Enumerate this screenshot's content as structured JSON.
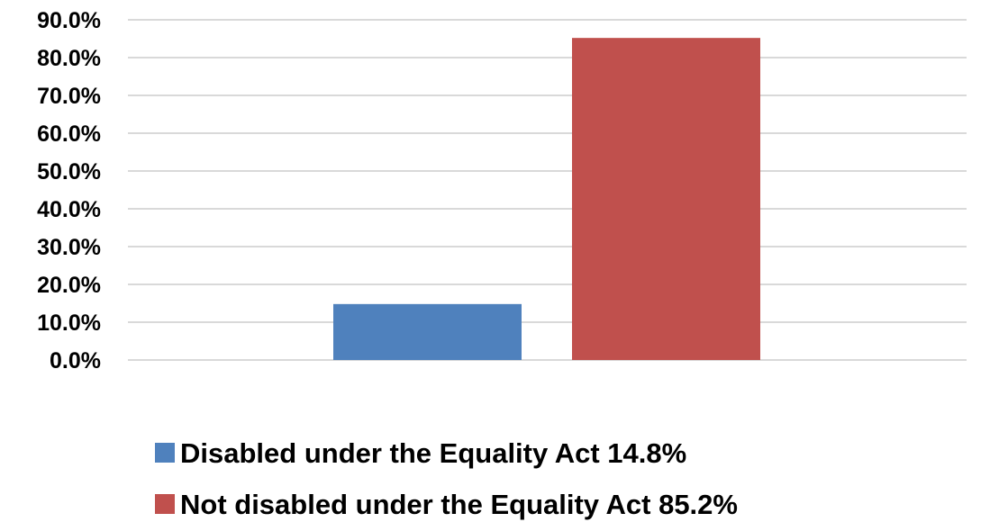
{
  "chart_data": {
    "type": "bar",
    "categories": [
      ""
    ],
    "series": [
      {
        "name": "Disabled under the Equality Act 14.8%",
        "values": [
          14.8
        ],
        "color": "#4F81BD"
      },
      {
        "name": "Not disabled under the Equality Act 85.2%",
        "values": [
          85.2
        ],
        "color": "#C0504D"
      }
    ],
    "ylim": [
      0,
      90
    ],
    "ytick_step": 10,
    "ytick_labels": [
      "0.0%",
      "10.0%",
      "20.0%",
      "30.0%",
      "40.0%",
      "50.0%",
      "60.0%",
      "70.0%",
      "80.0%",
      "90.0%"
    ],
    "grid": true,
    "gridline_color": "#D9D9D9",
    "legend_position": "bottom",
    "title": "",
    "xlabel": "",
    "ylabel": ""
  }
}
